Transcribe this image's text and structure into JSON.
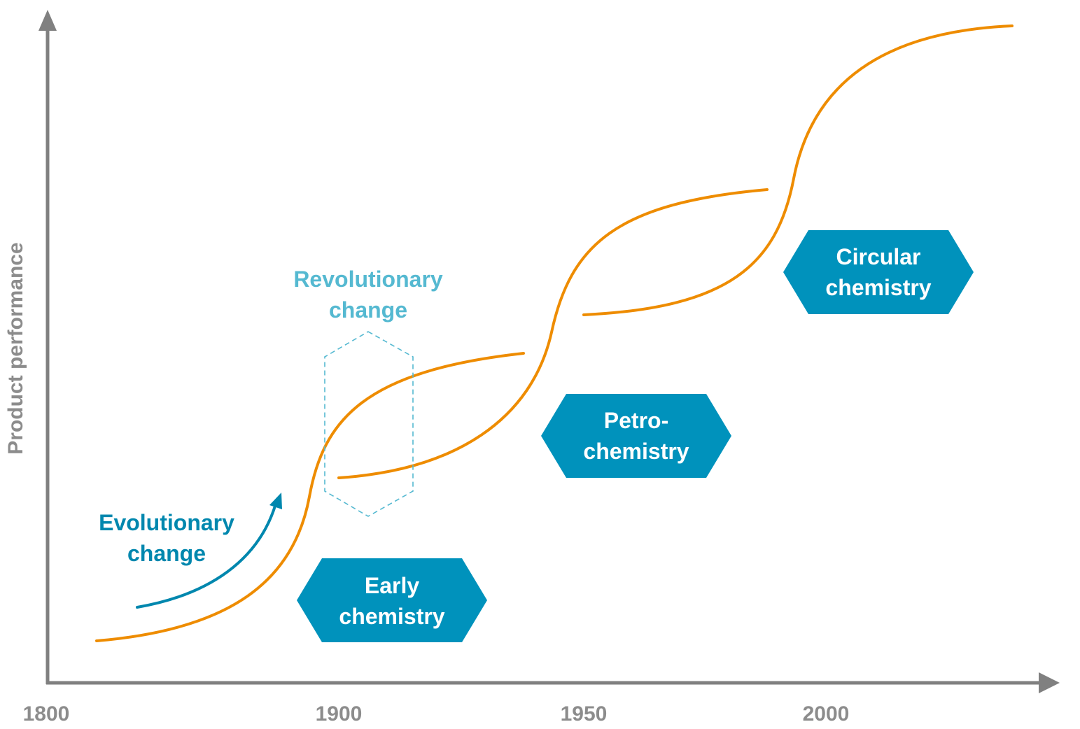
{
  "axes": {
    "y_label": "Product performance",
    "x_ticks": [
      "1800",
      "1900",
      "1950",
      "2000"
    ],
    "axis_color": "#808080"
  },
  "annotations": {
    "evolutionary": [
      "Evolutionary",
      "change"
    ],
    "revolutionary": [
      "Revolutionary",
      "change"
    ]
  },
  "phases": [
    {
      "lines": [
        "Early",
        "chemistry"
      ]
    },
    {
      "lines": [
        "Petro-",
        "chemistry"
      ]
    },
    {
      "lines": [
        "Circular",
        "chemistry"
      ]
    }
  ],
  "colors": {
    "curve": "#EE8C00",
    "phase_fill": "#0092BC",
    "evolutionary": "#0087AE",
    "revolutionary": "#55B9D1"
  }
}
